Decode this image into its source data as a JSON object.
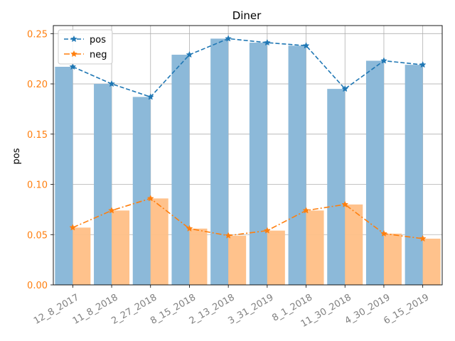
{
  "chart_data": {
    "type": "bar",
    "title": "Diner",
    "xlabel": "",
    "ylabel": "pos",
    "ylim": [
      0,
      0.258
    ],
    "yticks": [
      "0.00",
      "0.05",
      "0.10",
      "0.15",
      "0.20",
      "0.25"
    ],
    "categories": [
      "12_8_2017",
      "11_8_2018",
      "2_27_2018",
      "8_15_2018",
      "2_13_2018",
      "3_31_2019",
      "8_1_2018",
      "11_30_2018",
      "4_30_2019",
      "6_15_2019"
    ],
    "series": [
      {
        "name": "pos",
        "values": [
          0.217,
          0.2,
          0.187,
          0.229,
          0.245,
          0.241,
          0.238,
          0.195,
          0.223,
          0.219
        ]
      },
      {
        "name": "neg",
        "values": [
          0.057,
          0.074,
          0.086,
          0.056,
          0.049,
          0.054,
          0.074,
          0.08,
          0.051,
          0.046
        ]
      }
    ],
    "colors": {
      "pos": "#1f77b4",
      "neg": "#ff7f0e",
      "pos_bar": "#8cb9d9",
      "neg_bar": "#ffbf86"
    },
    "grid": true,
    "legend": "top-left"
  }
}
